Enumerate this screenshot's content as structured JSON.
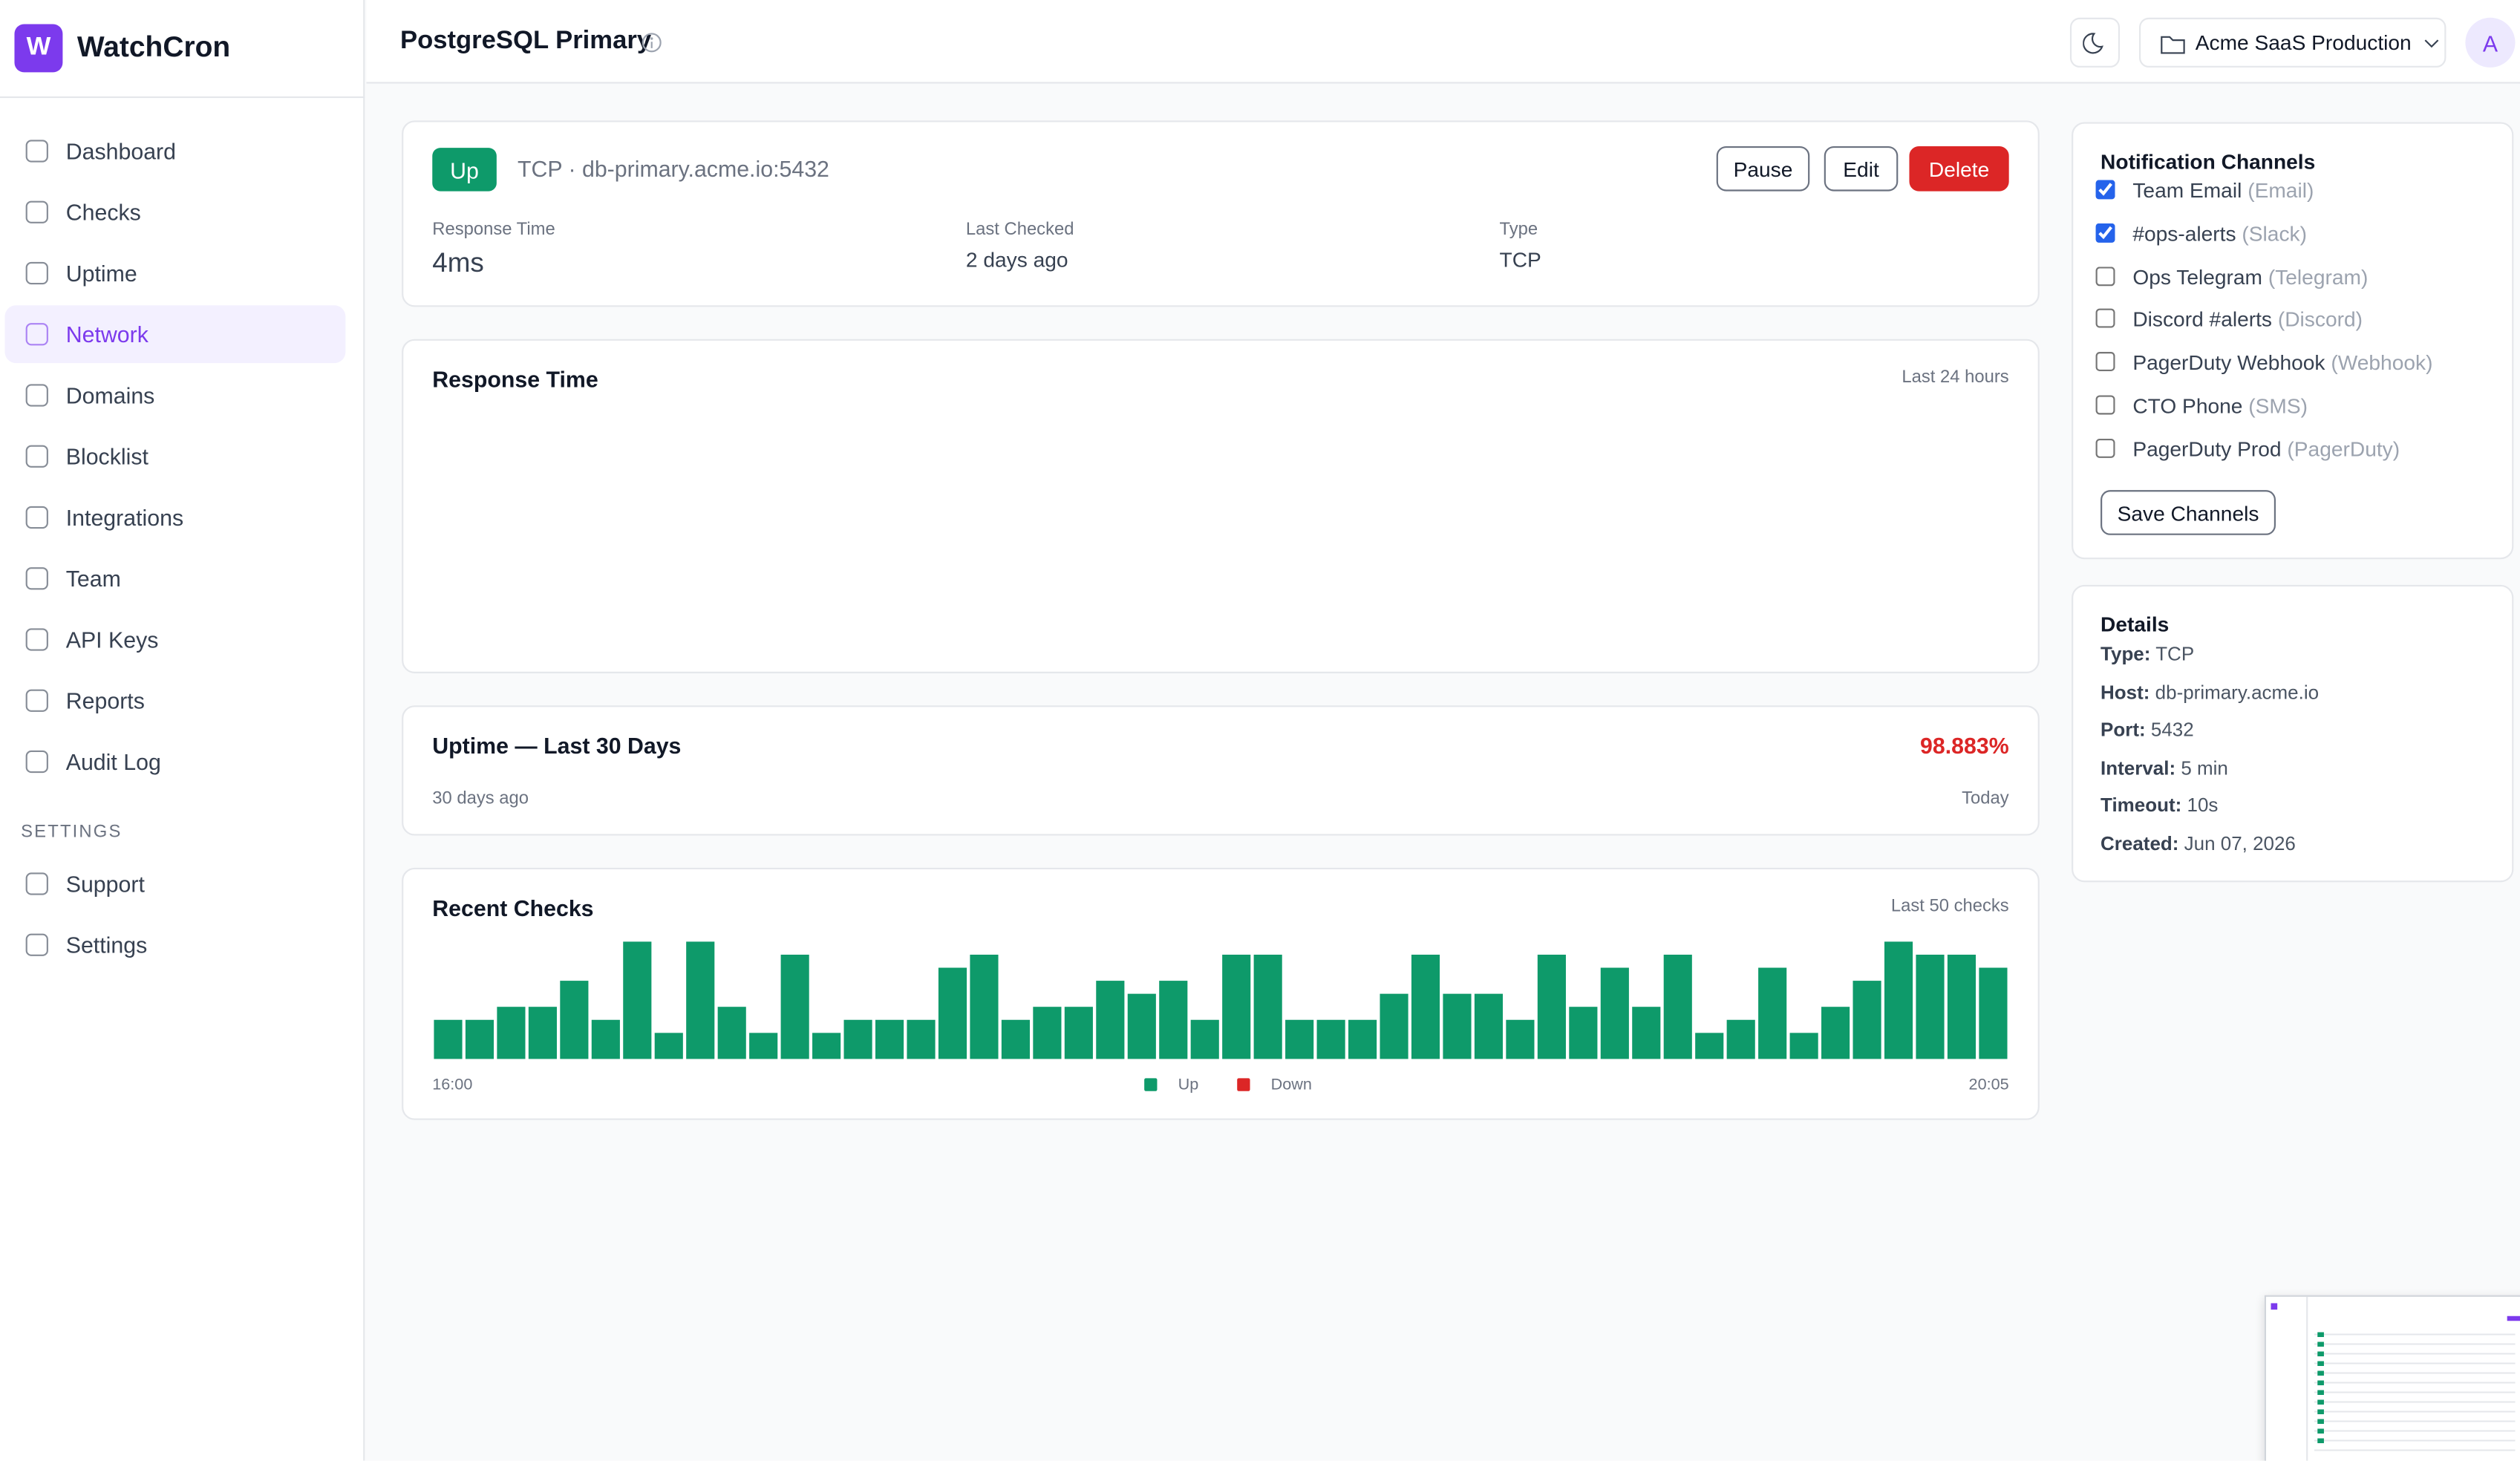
{
  "sidebar": {
    "logo": "W",
    "brand": "WatchCron",
    "nav": [
      "Dashboard",
      "Checks",
      "Uptime",
      "Network",
      "Domains",
      "Blocklist",
      "Integrations",
      "Team",
      "API Keys",
      "Reports",
      "Audit Log"
    ],
    "settings_label": "SETTINGS",
    "settings_nav": [
      "Support",
      "Settings"
    ]
  },
  "header": {
    "title": "PostgreSQL Primary",
    "workspace": "Acme SaaS Production",
    "avatar": "A"
  },
  "monitor": {
    "status": "Up",
    "target": "TCP · db-primary.acme.io:5432",
    "buttons": [
      "Pause",
      "Edit",
      "Delete"
    ],
    "stats": [
      {
        "label": "Response Time",
        "value": "4ms"
      },
      {
        "label": "Last Checked",
        "value": "2 days ago"
      },
      {
        "label": "Type",
        "value": "TCP"
      }
    ]
  },
  "response_chart": {
    "title": "Response Time",
    "range": "Last 24 hours"
  },
  "uptime": {
    "title": "Uptime — Last 30 Days",
    "value": "98.883%",
    "start": "30 days ago",
    "end": "Today"
  },
  "chart_data": {
    "type": "bar",
    "title": "Recent Checks",
    "subtitle": "Last 50 checks",
    "categories": [
      "16:00",
      null,
      null,
      null,
      null,
      null,
      null,
      null,
      null,
      null,
      null,
      null,
      null,
      null,
      null,
      null,
      null,
      null,
      null,
      null,
      null,
      null,
      null,
      null,
      null,
      null,
      null,
      null,
      null,
      null,
      null,
      null,
      null,
      null,
      null,
      null,
      null,
      null,
      null,
      null,
      null,
      null,
      null,
      null,
      null,
      null,
      null,
      null,
      null,
      "20:05"
    ],
    "series": [
      {
        "name": "Up",
        "color": "#0e9a6a",
        "values": [
          3,
          3,
          4,
          4,
          6,
          3,
          9,
          2,
          9,
          4,
          2,
          8,
          2,
          3,
          3,
          3,
          7,
          8,
          3,
          4,
          4,
          6,
          5,
          6,
          3,
          8,
          8,
          3,
          3,
          3,
          5,
          8,
          5,
          5,
          3,
          8,
          4,
          7,
          4,
          8,
          2,
          3,
          7,
          2,
          4,
          6,
          9,
          8,
          8,
          7
        ]
      },
      {
        "name": "Down",
        "color": "#dc2626",
        "values": [
          null,
          null,
          null,
          null,
          null,
          null,
          null,
          null,
          null,
          null,
          null,
          null,
          null,
          null,
          null,
          null,
          null,
          null,
          null,
          null,
          null,
          null,
          null,
          null,
          null,
          null,
          null,
          null,
          null,
          null,
          null,
          null,
          null,
          null,
          null,
          null,
          null,
          null,
          null,
          null,
          null,
          null,
          null,
          null,
          null,
          null,
          null,
          null,
          null,
          null
        ]
      }
    ]
  },
  "channels": {
    "title": "Notification Channels",
    "items": [
      {
        "name": "Team Email",
        "kind": "(Email)",
        "checked": true
      },
      {
        "name": "#ops-alerts",
        "kind": "(Slack)",
        "checked": true
      },
      {
        "name": "Ops Telegram",
        "kind": "(Telegram)",
        "checked": false
      },
      {
        "name": "Discord #alerts",
        "kind": "(Discord)",
        "checked": false
      },
      {
        "name": "PagerDuty Webhook",
        "kind": "(Webhook)",
        "checked": false
      },
      {
        "name": "CTO Phone",
        "kind": "(SMS)",
        "checked": false
      },
      {
        "name": "PagerDuty Prod",
        "kind": "(PagerDuty)",
        "checked": false
      }
    ],
    "button": "Save Channels"
  },
  "details": {
    "title": "Details",
    "rows": [
      {
        "label": "Type:",
        "value": "TCP"
      },
      {
        "label": "Host:",
        "value": "db-primary.acme.io"
      },
      {
        "label": "Port:",
        "value": "5432"
      },
      {
        "label": "Interval:",
        "value": "5 min"
      },
      {
        "label": "Timeout:",
        "value": "10s"
      },
      {
        "label": "Created:",
        "value": "Jun 07, 2026"
      }
    ]
  }
}
